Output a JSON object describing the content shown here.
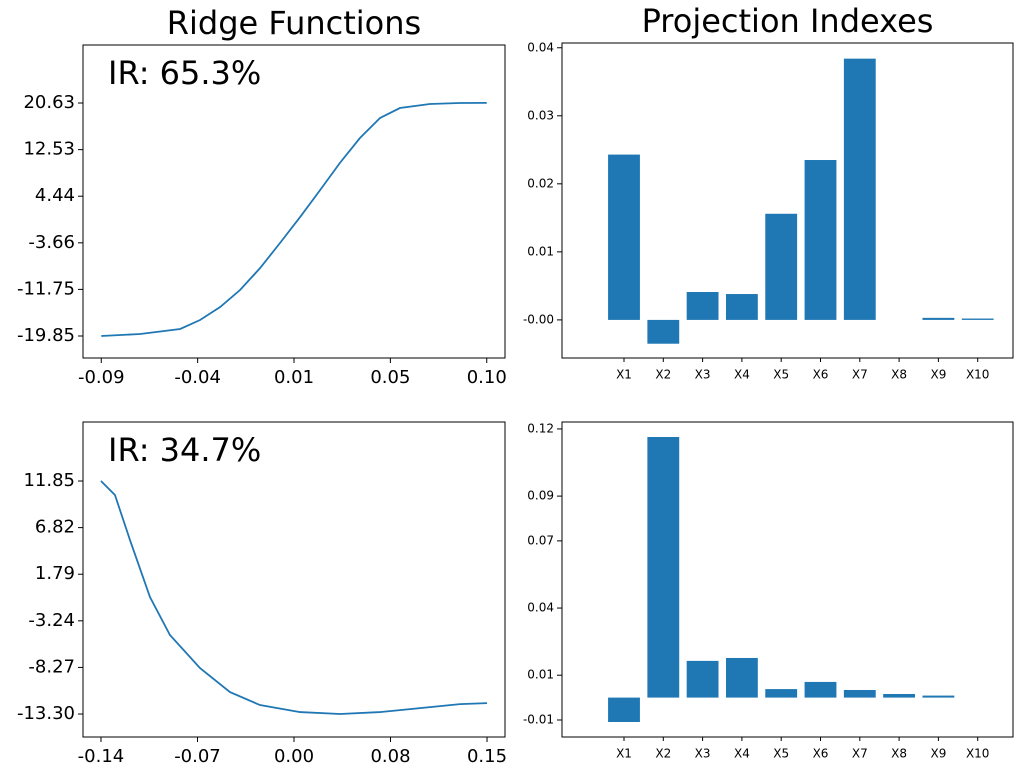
{
  "chart_data": [
    {
      "type": "line",
      "title": "Ridge Functions",
      "annotation": "IR: 65.3%",
      "color": "#1f77b4",
      "x": [
        -0.089,
        -0.0698,
        -0.0501,
        -0.0403,
        -0.0304,
        -0.0206,
        -0.0107,
        -0.0009,
        0.009,
        0.0189,
        0.0286,
        0.0385,
        0.0484,
        0.0582,
        0.073,
        0.0877,
        0.101
      ],
      "values": [
        -19.85,
        -19.5,
        -18.63,
        -17.07,
        -14.81,
        -11.86,
        -8.04,
        -3.69,
        0.82,
        5.52,
        10.21,
        14.55,
        18.02,
        19.76,
        20.46,
        20.63,
        20.66
      ],
      "xlim": [
        -0.098,
        0.11
      ],
      "xticks": [
        {
          "value": -0.089,
          "label": "-0.09"
        },
        {
          "value": -0.0415,
          "label": "-0.04"
        },
        {
          "value": 0.006,
          "label": "0.01"
        },
        {
          "value": 0.0535,
          "label": "0.05"
        },
        {
          "value": 0.101,
          "label": "0.10"
        }
      ],
      "ylim": [
        -23.67,
        30.71
      ],
      "yticks": [
        -19.85,
        -11.75,
        -3.66,
        4.44,
        12.53,
        20.63
      ]
    },
    {
      "type": "bar",
      "title": "Projection Indexes",
      "color": "#1f77b4",
      "categories": [
        "X1",
        "X2",
        "X3",
        "X4",
        "X5",
        "X6",
        "X7",
        "X8",
        "X9",
        "X10"
      ],
      "values": [
        0.0243,
        -0.0035,
        0.0041,
        0.0038,
        0.0156,
        0.0235,
        0.0384,
        0,
        0.0003,
        0.0002
      ],
      "ylim": [
        -0.0056,
        0.0407
      ],
      "yticks": [
        {
          "value": 0,
          "label": "-0.00"
        },
        0.01,
        0.02,
        0.03,
        0.04
      ]
    },
    {
      "type": "line",
      "annotation": "IR: 34.7%",
      "color": "#1f77b4",
      "x": [
        -0.142,
        -0.1315,
        -0.1202,
        -0.1052,
        -0.0902,
        -0.0676,
        -0.0451,
        -0.0226,
        0.0075,
        0.0376,
        0.0676,
        0.0977,
        0.1277,
        0.148
      ],
      "values": [
        11.85,
        10.34,
        5.48,
        -0.67,
        -4.77,
        -8.34,
        -10.93,
        -12.33,
        -13.09,
        -13.3,
        -13.09,
        -12.66,
        -12.23,
        -12.12
      ],
      "xlim": [
        -0.1555,
        0.1615
      ],
      "xticks": [
        {
          "value": -0.142,
          "label": "-0.14"
        },
        {
          "value": -0.0695,
          "label": "-0.07"
        },
        {
          "value": 0.003,
          "label": "0.00"
        },
        {
          "value": 0.0755,
          "label": "0.08"
        },
        {
          "value": 0.148,
          "label": "0.15"
        }
      ],
      "ylim": [
        -15.78,
        18.22
      ],
      "yticks": [
        {
          "value": -13.3,
          "label": "-13.30"
        },
        -8.27,
        -3.24,
        1.79,
        6.82,
        11.85
      ]
    },
    {
      "type": "bar",
      "color": "#1f77b4",
      "categories": [
        "X1",
        "X2",
        "X3",
        "X4",
        "X5",
        "X6",
        "X7",
        "X8",
        "X9",
        "X10"
      ],
      "values": [
        -0.0109,
        0.1164,
        0.0164,
        0.0177,
        0.0038,
        0.007,
        0.0034,
        0.0016,
        0.0009,
        0
      ],
      "ylim": [
        -0.0176,
        0.1231
      ],
      "yticks": [
        -0.01,
        0.01,
        0.04,
        0.07,
        0.09,
        0.12
      ]
    }
  ]
}
